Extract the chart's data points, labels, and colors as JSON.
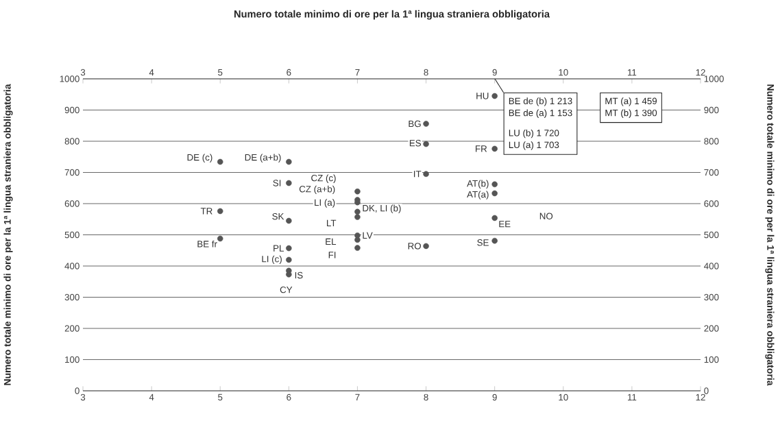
{
  "chart_data": {
    "type": "scatter",
    "title": "Numero totale minimo di ore per la 1ª lingua straniera obbligatoria",
    "ylabel": "Numero totale minimo di ore per la 1ª lingua straniera obbligatoria",
    "y2label": "Numero totale minimo di ore per la 1ª lingua straniera obbligatoria",
    "xlim": [
      3,
      12
    ],
    "xticks": [
      3,
      4,
      5,
      6,
      7,
      8,
      9,
      10,
      11,
      12
    ],
    "x2lim": [
      3,
      12
    ],
    "x2ticks": [
      3,
      4,
      5,
      6,
      7,
      8,
      9,
      10,
      11,
      12
    ],
    "ylim": [
      0,
      1000
    ],
    "yticks": [
      0,
      100,
      200,
      300,
      400,
      500,
      600,
      700,
      800,
      900,
      1000
    ],
    "y2lim": [
      0,
      1000
    ],
    "y2ticks": [
      0,
      100,
      200,
      300,
      400,
      500,
      600,
      700,
      800,
      900,
      1000
    ],
    "grid": "y",
    "marker": "circle",
    "series": [
      {
        "color": "#555555",
        "x": [
          5,
          6,
          6,
          5,
          6,
          5,
          6,
          6,
          6,
          6,
          7,
          7,
          7,
          7,
          7,
          7,
          7,
          7,
          8,
          8,
          8,
          8,
          9,
          9,
          9,
          9,
          9,
          9
        ],
        "values": [
          734,
          734,
          666,
          576,
          545,
          488,
          457,
          420,
          385,
          373,
          639,
          612,
          604,
          574,
          557,
          498,
          484,
          458,
          856,
          791,
          695,
          464,
          945,
          776,
          662,
          633,
          554,
          481
        ]
      }
    ],
    "annotations": [
      {
        "text": "DE (c)",
        "x": 5,
        "y": 734
      },
      {
        "text": "DE (a+b)",
        "x": 6,
        "y": 734
      },
      {
        "text": "SI",
        "x": 6,
        "y": 666
      },
      {
        "text": "TR",
        "x": 5,
        "y": 576
      },
      {
        "text": "SK",
        "x": 6,
        "y": 545
      },
      {
        "text": "BE fr",
        "x": 5,
        "y": 488
      },
      {
        "text": "PL",
        "x": 6,
        "y": 457
      },
      {
        "text": "LI (c)",
        "x": 6,
        "y": 420
      },
      {
        "text": "IS",
        "x": 6,
        "y": 385
      },
      {
        "text": "CY",
        "x": 6,
        "y": 373
      },
      {
        "text": "CZ (c)",
        "x": 7,
        "y": 639
      },
      {
        "text": "CZ (a+b)",
        "x": 7,
        "y": 612
      },
      {
        "text": "LI (a)",
        "x": 7,
        "y": 604
      },
      {
        "text": "DK, LI (b)",
        "x": 7,
        "y": 574
      },
      {
        "text": "LT",
        "x": 7,
        "y": 557
      },
      {
        "text": "LV",
        "x": 7,
        "y": 498
      },
      {
        "text": "EL",
        "x": 7,
        "y": 484
      },
      {
        "text": "FI",
        "x": 7,
        "y": 458
      },
      {
        "text": "BG",
        "x": 8,
        "y": 856
      },
      {
        "text": "ES",
        "x": 8,
        "y": 791
      },
      {
        "text": "IT",
        "x": 8,
        "y": 695
      },
      {
        "text": "RO",
        "x": 8,
        "y": 464
      },
      {
        "text": "HU",
        "x": 9,
        "y": 945
      },
      {
        "text": "FR",
        "x": 9,
        "y": 776
      },
      {
        "text": "AT(b)",
        "x": 9,
        "y": 662
      },
      {
        "text": "AT(a)",
        "x": 9,
        "y": 633
      },
      {
        "text": "EE",
        "x": 9,
        "y": 554
      },
      {
        "text": "SE",
        "x": 9,
        "y": 481
      },
      "BE de (b) 1 213",
      "BE de (a) 1 153",
      "LU (b) 1 720",
      "LU (a) 1 703",
      "MT (a) 1 459",
      "MT (b) 1 390",
      "NO"
    ]
  }
}
